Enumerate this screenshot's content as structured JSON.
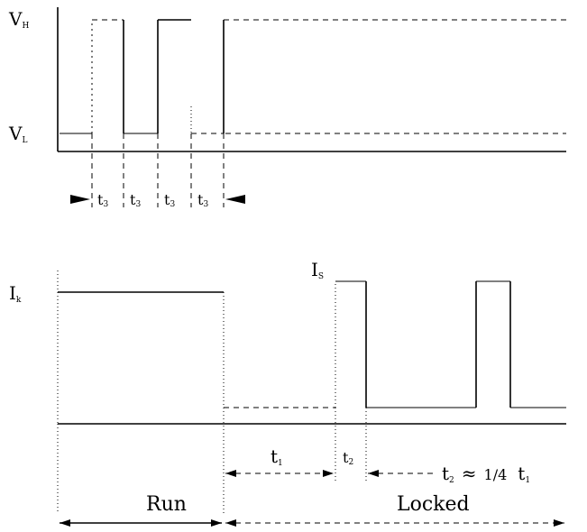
{
  "voltage_plot": {
    "vh_label": "V",
    "vh_sub": "H",
    "vl_label": "V",
    "vl_sub": "L",
    "interval_labels": [
      {
        "text": "t",
        "sub": "3"
      },
      {
        "text": "t",
        "sub": "3"
      },
      {
        "text": "t",
        "sub": "3"
      },
      {
        "text": "t",
        "sub": "3"
      }
    ]
  },
  "current_plot": {
    "ik_label": "I",
    "ik_sub": "k",
    "is_label": "I",
    "is_sub": "S",
    "t1_label": "t",
    "t1_sub": "1",
    "t2_label": "t",
    "t2_sub": "2",
    "formula": {
      "lhs": "t",
      "lhs_sub": "2",
      "op": "≈",
      "frac": "1/4",
      "rhs": "t",
      "rhs_sub": "1"
    }
  },
  "regions": {
    "run_label": "Run",
    "locked_label": "Locked"
  }
}
